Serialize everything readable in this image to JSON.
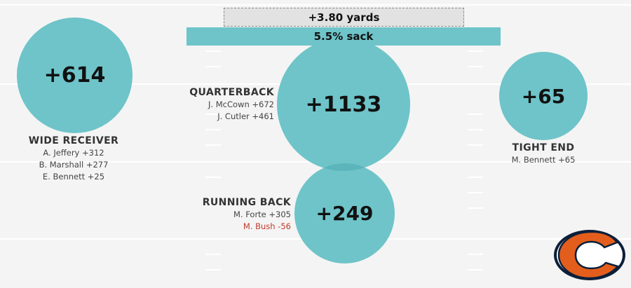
{
  "colors": {
    "bubble": "#6ec4c9",
    "bubble_overlap": "#58b3b8",
    "sack_bar": "#6ec4c9",
    "negative": "#c0392b",
    "logo_orange": "#e35e1c",
    "logo_navy": "#0b1f3a"
  },
  "summary": {
    "yards_label": "+3.80 yards",
    "sack_label": "5.5% sack"
  },
  "positions": {
    "wide_receiver": {
      "total": "+614",
      "title": "WIDE RECEIVER",
      "players": [
        "A. Jeffery +312",
        "B. Marshall +277",
        "E. Bennett +25"
      ]
    },
    "quarterback": {
      "total": "+1133",
      "title": "QUARTERBACK",
      "players": [
        "J. McCown +672",
        "J. Cutler +461"
      ]
    },
    "tight_end": {
      "total": "+65",
      "title": "TIGHT END",
      "players": [
        "M. Bennett +65"
      ]
    },
    "running_back": {
      "total": "+249",
      "title": "RUNNING BACK",
      "players": [
        "M. Forte +305",
        "M. Bush -56"
      ]
    }
  },
  "logo_icon": "chicago-bears-c-logo-icon"
}
